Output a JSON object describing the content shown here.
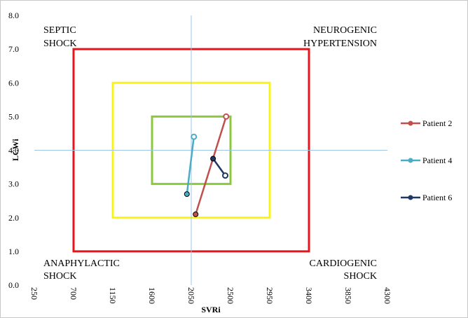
{
  "chart_data": {
    "type": "scatter",
    "xlabel": "SVRi",
    "ylabel": "LCWi",
    "x_ticks": [
      250,
      700,
      1150,
      1600,
      2050,
      2500,
      2950,
      3400,
      3850,
      4300
    ],
    "y_ticks": [
      "0.0",
      "1.0",
      "2.0",
      "3.0",
      "4.0",
      "5.0",
      "6.0",
      "7.0",
      "8.0"
    ],
    "xlim": [
      250,
      4300
    ],
    "ylim": [
      0,
      8
    ],
    "crosshair": {
      "x": 2050,
      "y": 4.0
    },
    "zones": [
      {
        "color": "#e8141b",
        "x": [
          700,
          3400
        ],
        "y": [
          1.0,
          7.0
        ]
      },
      {
        "color": "#f8f514",
        "x": [
          1150,
          2950
        ],
        "y": [
          2.0,
          6.0
        ]
      },
      {
        "color": "#8cc83c",
        "x": [
          1600,
          2500
        ],
        "y": [
          3.0,
          5.0
        ]
      }
    ],
    "quadrant_labels": [
      {
        "lines": [
          "SEPTIC",
          "SHOCK"
        ],
        "pos": "top-left"
      },
      {
        "lines": [
          "NEUROGENIC",
          "HYPERTENSION"
        ],
        "pos": "top-right"
      },
      {
        "lines": [
          "ANAPHYLACTIC",
          "SHOCK"
        ],
        "pos": "bottom-left"
      },
      {
        "lines": [
          "CARDIOGENIC",
          "SHOCK"
        ],
        "pos": "bottom-right"
      }
    ],
    "series": [
      {
        "name": "Patient 2",
        "color": "#c0504d",
        "points": [
          [
            2100,
            2.1
          ],
          [
            2450,
            5.0
          ]
        ]
      },
      {
        "name": "Patient 4",
        "color": "#4bacc6",
        "points": [
          [
            2000,
            2.7
          ],
          [
            2080,
            4.4
          ]
        ]
      },
      {
        "name": "Patient 6",
        "color": "#1f3864",
        "points": [
          [
            2300,
            3.75
          ],
          [
            2440,
            3.25
          ]
        ]
      }
    ],
    "legend_position": "right",
    "grid": false
  }
}
